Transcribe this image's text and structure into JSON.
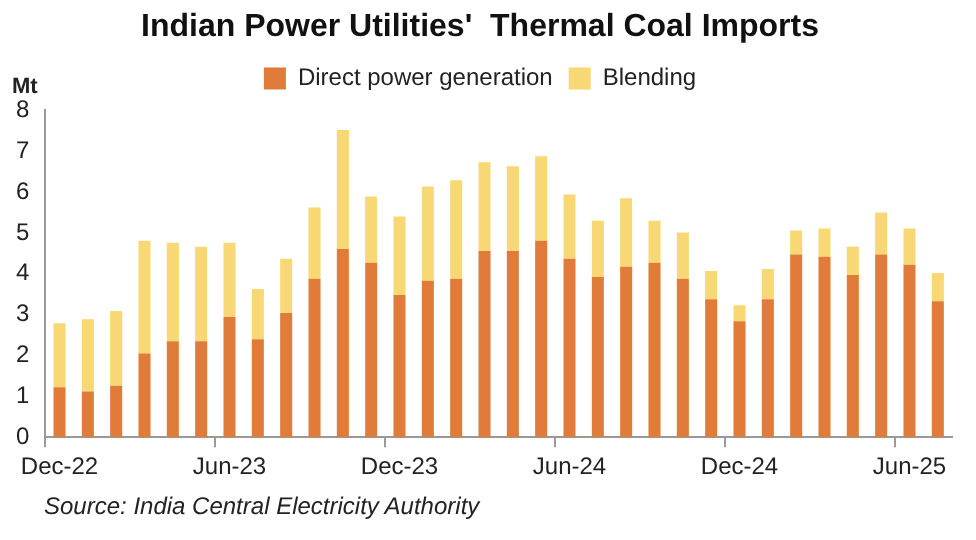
{
  "chart_data": {
    "type": "bar",
    "title": "Indian Power Utilities'  Thermal Coal Imports",
    "ylabel": "Mt",
    "stacked": true,
    "legend": "top",
    "grid": false,
    "categories": [
      "Dec-22",
      null,
      null,
      null,
      null,
      null,
      "Jun-23",
      null,
      null,
      null,
      null,
      null,
      "Dec-23",
      null,
      null,
      null,
      null,
      null,
      "Jun-24",
      null,
      null,
      null,
      null,
      null,
      "Dec-24",
      null,
      null,
      null,
      null,
      null,
      "Jun-25",
      null
    ],
    "series": [
      {
        "name": "Direct power generation",
        "color": "#e07b39",
        "values": [
          1.22,
          1.12,
          1.26,
          2.05,
          2.35,
          2.35,
          2.94,
          2.4,
          3.04,
          3.88,
          4.61,
          4.27,
          3.48,
          3.83,
          3.88,
          4.56,
          4.56,
          4.81,
          4.37,
          3.92,
          4.17,
          4.27,
          3.88,
          3.38,
          2.84,
          3.38,
          4.47,
          4.42,
          3.97,
          4.47,
          4.22,
          3.33
        ]
      },
      {
        "name": "Blending",
        "color": "#f7d874",
        "values": [
          1.57,
          1.77,
          1.83,
          2.76,
          2.41,
          2.31,
          1.82,
          1.23,
          1.33,
          1.74,
          2.91,
          1.62,
          1.92,
          2.31,
          2.41,
          2.17,
          2.07,
          2.07,
          1.57,
          1.38,
          1.68,
          1.03,
          1.13,
          0.69,
          0.39,
          0.74,
          0.59,
          0.69,
          0.69,
          1.03,
          0.89,
          0.69
        ]
      }
    ],
    "ylim": [
      0,
      8
    ],
    "yticks": [
      0,
      1,
      2,
      3,
      4,
      5,
      6,
      7,
      8
    ],
    "annotations": [
      "Source: India Central Electricity Authority"
    ]
  }
}
